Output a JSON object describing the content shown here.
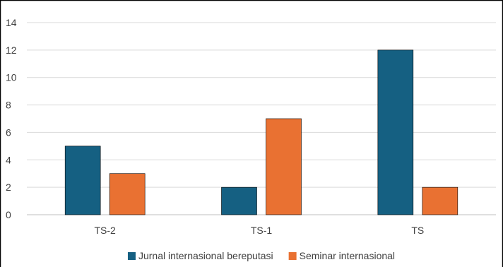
{
  "chart_data": {
    "type": "bar",
    "categories": [
      "TS-2",
      "TS-1",
      "TS"
    ],
    "series": [
      {
        "name": "Jurnal internasional bereputasi",
        "values": [
          5,
          2,
          12
        ],
        "color": "#156082"
      },
      {
        "name": "Seminar internasional",
        "values": [
          3,
          7,
          2
        ],
        "color": "#E97132"
      }
    ],
    "ylim": [
      0,
      14
    ],
    "yticks": [
      0,
      2,
      4,
      6,
      8,
      10,
      12,
      14
    ],
    "grid": true,
    "legend": "bottom"
  }
}
